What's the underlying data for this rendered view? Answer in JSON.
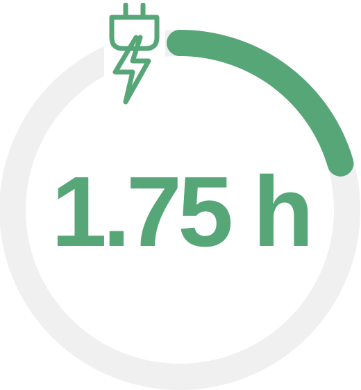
{
  "gauge": {
    "value_label": "1.75 h",
    "progress": 0.205,
    "colors": {
      "accent": "#57a678",
      "track": "#f0f0f0",
      "background": "#ffffff"
    }
  },
  "icons": {
    "charging": "charging-plug-icon"
  }
}
